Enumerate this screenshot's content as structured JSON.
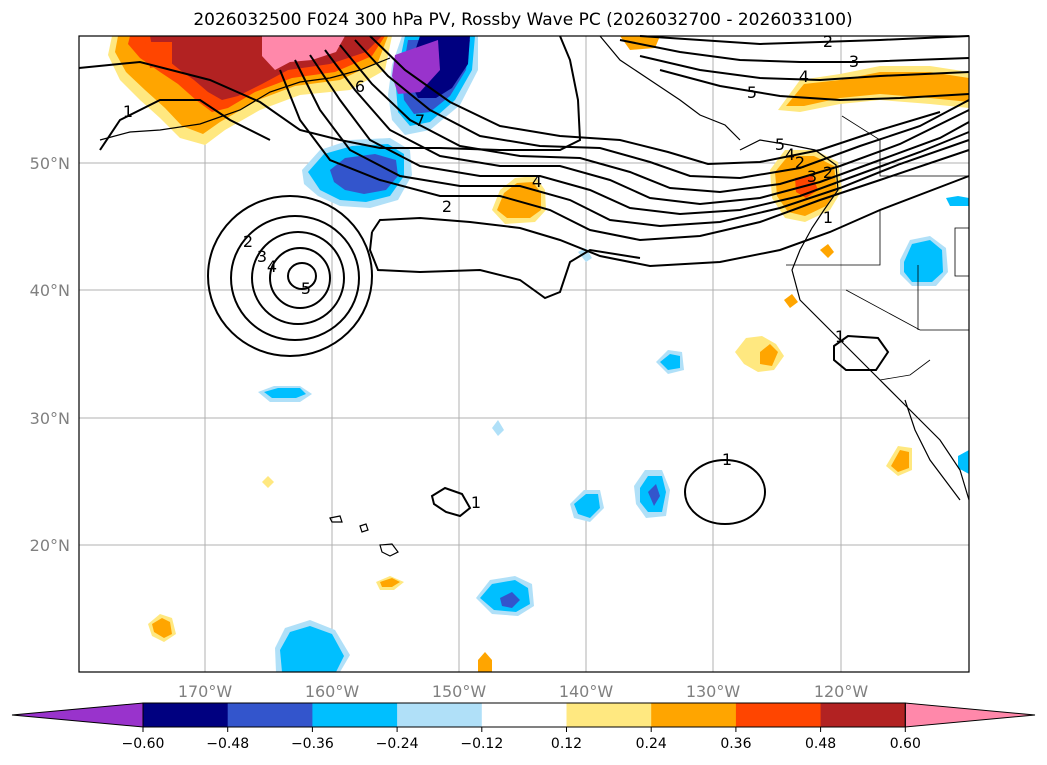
{
  "title": "2026032500 F024 300 hPa PV, Rossby Wave PC (2026032700 - 2026033100)",
  "lat_labels": [
    "50°N",
    "40°N",
    "30°N",
    "20°N"
  ],
  "lon_labels": [
    "170°W",
    "160°W",
    "150°W",
    "140°W",
    "130°W",
    "120°W"
  ],
  "colorbar": {
    "ticks": [
      "−0.60",
      "−0.48",
      "−0.36",
      "−0.24",
      "−0.12",
      "0.12",
      "0.24",
      "0.36",
      "0.48",
      "0.60"
    ],
    "colors": [
      "#9933cc",
      "#000080",
      "#3355cc",
      "#00bfff",
      "#b0e0f8",
      "#ffffff",
      "#ffe880",
      "#ffa500",
      "#ff4500",
      "#b22222",
      "#ff88aa",
      "#ff88aa"
    ]
  },
  "contour_labels": [
    "1",
    "2",
    "2",
    "3",
    "4",
    "5",
    "6",
    "7",
    "2",
    "3",
    "4",
    "5",
    "4",
    "2",
    "1",
    "1",
    "1",
    "1",
    "2",
    "3",
    "4",
    "5"
  ],
  "colors": {
    "purple": "#9933cc",
    "navy": "#000080",
    "blue": "#3355cc",
    "cyan": "#00bfff",
    "lightblue": "#b0e0f8",
    "yellow": "#ffe880",
    "orange": "#ffa500",
    "redorange": "#ff4500",
    "firebrick": "#b22222",
    "pink": "#ff88aa"
  }
}
